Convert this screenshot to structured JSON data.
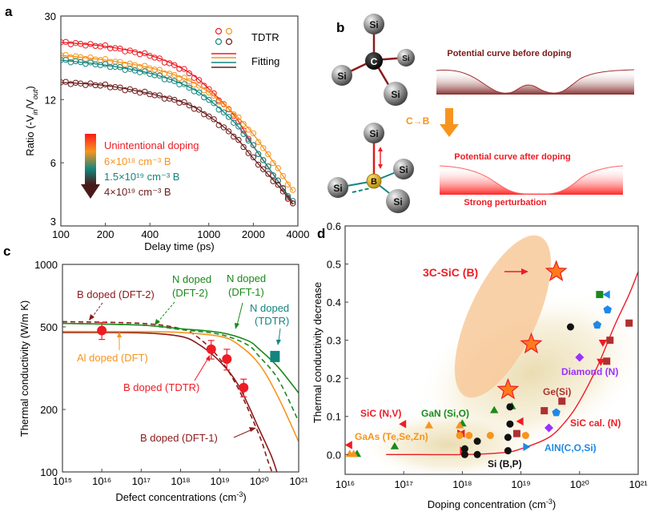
{
  "panels": {
    "a": {
      "letter": "a"
    },
    "b": {
      "letter": "b",
      "before_label": "Potential curve before doping",
      "after_label": "Potential curve after doping",
      "perturbation_label": "Strong perturbation",
      "substitution_label": "C→B",
      "atoms_before": [
        "Si",
        "Si",
        "Si",
        "Si",
        "C"
      ],
      "atoms_after": [
        "Si",
        "Si",
        "Si",
        "Si",
        "B"
      ]
    },
    "c": {
      "letter": "c"
    },
    "d": {
      "letter": "d"
    }
  },
  "colors": {
    "red": "#ee1c25",
    "orange": "#f7941d",
    "teal": "#13857f",
    "brown": "#6d1d1d",
    "green": "#1a8a1a",
    "darkred": "#8b1a1a",
    "blue": "#1e88e5",
    "purple": "#9b30ff",
    "black": "#111111"
  },
  "chart_data": [
    {
      "id": "a",
      "type": "scatter",
      "title": "",
      "xlabel": "Delay time (ps)",
      "ylabel": "Ratio (-V_in/V_out)",
      "xscale": "log",
      "yscale": "log",
      "xlim": [
        100,
        4000
      ],
      "ylim": [
        3,
        30
      ],
      "xticks": [
        100,
        200,
        400,
        1000,
        2000,
        4000
      ],
      "xtick_labels": [
        "100",
        "200",
        "400",
        "1000",
        "2000",
        "4000"
      ],
      "yticks": [
        3,
        6,
        12,
        30
      ],
      "ytick_labels": [
        "3",
        "6",
        "12",
        "30"
      ],
      "legend": {
        "markers_label": "TDTR",
        "lines_label": "Fitting",
        "position": "top-right"
      },
      "gradient_legend": [
        {
          "label": "Unintentional doping",
          "color": "#ee1c25"
        },
        {
          "label": "6×10¹⁸ cm⁻³ B",
          "color": "#f7941d"
        },
        {
          "label": "1.5×10¹⁹ cm⁻³ B",
          "color": "#13857f"
        },
        {
          "label": "4×10¹⁹ cm⁻³ B",
          "color": "#6d1d1d"
        }
      ],
      "series": [
        {
          "name": "Unintentional doping",
          "color": "#ee1c25",
          "x": [
            100,
            200,
            400,
            700,
            1000,
            1500,
            2000,
            3000,
            3700
          ],
          "y": [
            22.5,
            21.5,
            19.5,
            16.5,
            13.5,
            10,
            7.2,
            4.8,
            3.8
          ]
        },
        {
          "name": "6e18 cm-3 B",
          "color": "#f7941d",
          "x": [
            100,
            200,
            400,
            700,
            1000,
            1500,
            2000,
            3000,
            3700
          ],
          "y": [
            19.5,
            18.5,
            17,
            15,
            13,
            10.2,
            8.2,
            5.5,
            4.4
          ]
        },
        {
          "name": "1.5e19 cm-3 B",
          "color": "#13857f",
          "x": [
            100,
            200,
            400,
            700,
            1000,
            1500,
            2000,
            3000,
            3700
          ],
          "y": [
            18.5,
            17.5,
            16,
            14,
            12,
            9.3,
            7.2,
            4.8,
            3.9
          ]
        },
        {
          "name": "4e19 cm-3 B",
          "color": "#6d1d1d",
          "x": [
            100,
            200,
            400,
            700,
            1000,
            1500,
            2000,
            3000,
            3700
          ],
          "y": [
            14.5,
            14,
            12.8,
            11.5,
            10,
            8,
            6.3,
            4.6,
            3.8
          ]
        }
      ]
    },
    {
      "id": "c",
      "type": "line",
      "xlabel": "Defect concentrations (cm⁻³)",
      "ylabel": "Thermal conductivity (W/m K)",
      "xscale": "log",
      "yscale": "log",
      "xlim": [
        1000000000000000.0,
        1e+21
      ],
      "ylim": [
        100,
        1000
      ],
      "xticks": [
        1000000000000000.0,
        1e+16,
        1e+17,
        1e+18,
        1e+19,
        1e+20,
        1e+21
      ],
      "xtick_labels": [
        "10¹⁵",
        "10¹⁶",
        "10¹⁷",
        "10¹⁸",
        "10¹⁹",
        "10²⁰",
        "10²¹"
      ],
      "yticks": [
        100,
        200,
        500,
        1000
      ],
      "ytick_labels": [
        "100",
        "200",
        "500",
        "1000"
      ],
      "series": [
        {
          "name": "B doped (DFT-1)",
          "color": "#8b1a1a",
          "dash": false,
          "x": [
            1000000000000000.0,
            1e+17,
            1e+18,
            3e+18,
            1e+19,
            3e+19,
            1e+20,
            2e+20,
            2.8e+20
          ],
          "y": [
            470,
            468,
            450,
            410,
            340,
            260,
            160,
            120,
            100
          ]
        },
        {
          "name": "B doped (DFT-2)",
          "color": "#8b1a1a",
          "dash": true,
          "x": [
            1000000000000000.0,
            1e+17,
            1e+18,
            3e+18,
            1e+19,
            3e+19,
            1e+20,
            1.6e+20,
            2.1e+20
          ],
          "y": [
            530,
            520,
            490,
            440,
            350,
            250,
            150,
            115,
            100
          ]
        },
        {
          "name": "Al doped (DFT)",
          "color": "#f7941d",
          "dash": false,
          "x": [
            1000000000000000.0,
            1e+17,
            1e+18,
            1e+19,
            3e+19,
            1e+20,
            3e+20,
            1e+21
          ],
          "y": [
            475,
            474,
            470,
            450,
            410,
            330,
            230,
            140
          ]
        },
        {
          "name": "N doped (DFT-1)",
          "color": "#1a8a1a",
          "dash": false,
          "x": [
            1000000000000000.0,
            1e+17,
            1e+18,
            1e+19,
            5e+19,
            1e+20,
            3e+20,
            1e+21
          ],
          "y": [
            520,
            510,
            490,
            470,
            430,
            390,
            320,
            240
          ]
        },
        {
          "name": "N doped (DFT-2)",
          "color": "#1a8a1a",
          "dash": true,
          "x": [
            1000000000000000.0,
            1e+17,
            1e+18,
            1e+19,
            5e+19,
            1e+20,
            3e+20,
            1e+21
          ],
          "y": [
            520,
            510,
            485,
            460,
            410,
            360,
            280,
            175
          ]
        }
      ],
      "points": [
        {
          "name": "B doped (TDTR)",
          "color": "#ee1c25",
          "marker": "circle",
          "x": [
            1e+16,
            6e+18,
            1.5e+19,
            4e+19
          ],
          "y": [
            480,
            390,
            350,
            255
          ],
          "err": [
            45,
            40,
            40,
            25
          ]
        },
        {
          "name": "N doped (TDTR)",
          "color": "#13857f",
          "marker": "square",
          "x": [
            2.5e+20
          ],
          "y": [
            360
          ]
        }
      ],
      "annotations": [
        {
          "text": "B doped (DFT-2)",
          "color": "#8b1a1a"
        },
        {
          "text": "N doped\n(DFT-2)",
          "color": "#1a8a1a"
        },
        {
          "text": "N doped\n(DFT-1)",
          "color": "#1a8a1a"
        },
        {
          "text": "N doped\n(TDTR)",
          "color": "#13857f"
        },
        {
          "text": "Al doped (DFT)",
          "color": "#f7941d"
        },
        {
          "text": "B doped (TDTR)",
          "color": "#ee1c25"
        },
        {
          "text": "B doped (DFT-1)",
          "color": "#8b1a1a"
        }
      ]
    },
    {
      "id": "d",
      "type": "scatter",
      "xlabel": "Doping concentration (cm⁻³)",
      "ylabel": "Thermal conductivity decrease",
      "xscale": "log",
      "yscale": "linear",
      "xlim": [
        1e+16,
        1e+21
      ],
      "ylim": [
        -0.05,
        0.6
      ],
      "xticks": [
        1e+16,
        1e+17,
        1e+18,
        1e+19,
        1e+20,
        1e+21
      ],
      "xtick_labels": [
        "10¹⁶",
        "10¹⁷",
        "10¹⁸",
        "10¹⁹",
        "10²⁰",
        "10²¹"
      ],
      "yticks": [
        0.0,
        0.1,
        0.2,
        0.3,
        0.4,
        0.5,
        0.6
      ],
      "ytick_labels": [
        "0.0",
        "0.1",
        "0.2",
        "0.3",
        "0.4",
        "0.5",
        "0.6"
      ],
      "series": [
        {
          "name": "3C-SiC (B)",
          "color": "#ff6a13",
          "marker": "star",
          "x": [
            6e+18,
            1.5e+19,
            4e+19
          ],
          "y": [
            0.17,
            0.29,
            0.48
          ]
        },
        {
          "name": "SiC (N,V)",
          "color": "#ee1c25",
          "marker": "tri-left",
          "x": [
            1.2e+16,
            1e+17,
            1e+18,
            1e+19
          ],
          "y": [
            0.025,
            0.08,
            0.055,
            0.087
          ]
        },
        {
          "name": "SiC (N,V) right",
          "color": "#ee1c25",
          "marker": "tri-right",
          "x": [
            9e+17,
            1e+18
          ],
          "y": [
            0.055,
            0.01
          ]
        },
        {
          "name": "SiC (N,V) down",
          "color": "#ee1c25",
          "marker": "tri-down",
          "x": [
            2.5e+20,
            2.3e+20
          ],
          "y": [
            0.295,
            0.245
          ]
        },
        {
          "name": "GaN (Si,O)",
          "color": "#1a8a1a",
          "marker": "tri-up",
          "x": [
            1.6e+16,
            7e+16,
            1e+18,
            3.5e+18,
            7e+18
          ],
          "y": [
            0.0,
            0.02,
            0.08,
            0.115,
            0.125
          ]
        },
        {
          "name": "GaN square",
          "color": "#1a8a1a",
          "marker": "square",
          "x": [
            2.2e+20
          ],
          "y": [
            0.42
          ]
        },
        {
          "name": "GaAs (Te,Se,Zn)",
          "color": "#f7941d",
          "marker": "tri-up",
          "x": [
            1.2e+16,
            1.4e+16,
            2.7e+17,
            9e+17
          ],
          "y": [
            0.0,
            0.0,
            0.075,
            0.075
          ]
        },
        {
          "name": "GaAs circles",
          "color": "#f7941d",
          "marker": "circle",
          "x": [
            9e+17,
            1.3e+18,
            3e+18,
            1.2e+19
          ],
          "y": [
            0.05,
            0.05,
            0.05,
            0.05
          ]
        },
        {
          "name": "Si (B,P)",
          "color": "#111111",
          "marker": "circle",
          "x": [
            1.1e+18,
            1.1e+18,
            1.8e+18,
            1.8e+18,
            6e+18,
            6e+18,
            6.5e+18,
            6.5e+18,
            7e+19
          ],
          "y": [
            0.015,
            0.0,
            0.035,
            0.0,
            0.01,
            0.045,
            0.08,
            0.125,
            0.335
          ]
        },
        {
          "name": "Ge(Si)",
          "color": "#b03030",
          "marker": "square",
          "x": [
            8.5e+18,
            2.5e+19,
            5e+19,
            3.3e+20,
            2.9e+20,
            7e+20
          ],
          "y": [
            0.055,
            0.115,
            0.14,
            0.3,
            0.245,
            0.345
          ]
        },
        {
          "name": "Diamond (N)",
          "color": "#9b30ff",
          "marker": "diamond",
          "x": [
            3e+19,
            1e+20
          ],
          "y": [
            0.07,
            0.255
          ]
        },
        {
          "name": "AlN(C,O,Si)",
          "color": "#1e88e5",
          "marker": "pentagon",
          "x": [
            4e+19,
            2e+20,
            3e+20
          ],
          "y": [
            0.11,
            0.34,
            0.38
          ]
        },
        {
          "name": "AlN tri",
          "color": "#1e88e5",
          "marker": "tri-right",
          "x": [
            1.2e+19
          ],
          "y": [
            0.02
          ]
        },
        {
          "name": "AlN tri-left",
          "color": "#1e88e5",
          "marker": "tri-left",
          "x": [
            3e+20
          ],
          "y": [
            0.42
          ]
        }
      ],
      "curve": {
        "name": "SiC cal. (N)",
        "color": "#ee1c25",
        "x": [
          5e+16,
          1e+17,
          1e+18,
          5e+18,
          1e+19,
          3e+19,
          6e+19,
          1e+20,
          2e+20,
          4e+20,
          7e+20,
          1e+21
        ],
        "y": [
          0.0,
          0.0,
          0.0,
          0.005,
          0.015,
          0.045,
          0.09,
          0.14,
          0.23,
          0.34,
          0.42,
          0.48
        ]
      },
      "labels": [
        {
          "text": "3C-SiC (B)",
          "color": "#ee1c25"
        },
        {
          "text": "SiC (N,V)",
          "color": "#ee1c25"
        },
        {
          "text": "GaN (Si,O)",
          "color": "#1a8a1a"
        },
        {
          "text": "GaAs (Te,Se,Zn)",
          "color": "#f7941d"
        },
        {
          "text": "Si (B,P)",
          "color": "#111111"
        },
        {
          "text": "Ge(Si)",
          "color": "#b03030"
        },
        {
          "text": "Diamond (N)",
          "color": "#9b30ff"
        },
        {
          "text": "SiC cal. (N)",
          "color": "#ee1c25"
        },
        {
          "text": "AlN(C,O,Si)",
          "color": "#1e88e5"
        }
      ]
    }
  ]
}
